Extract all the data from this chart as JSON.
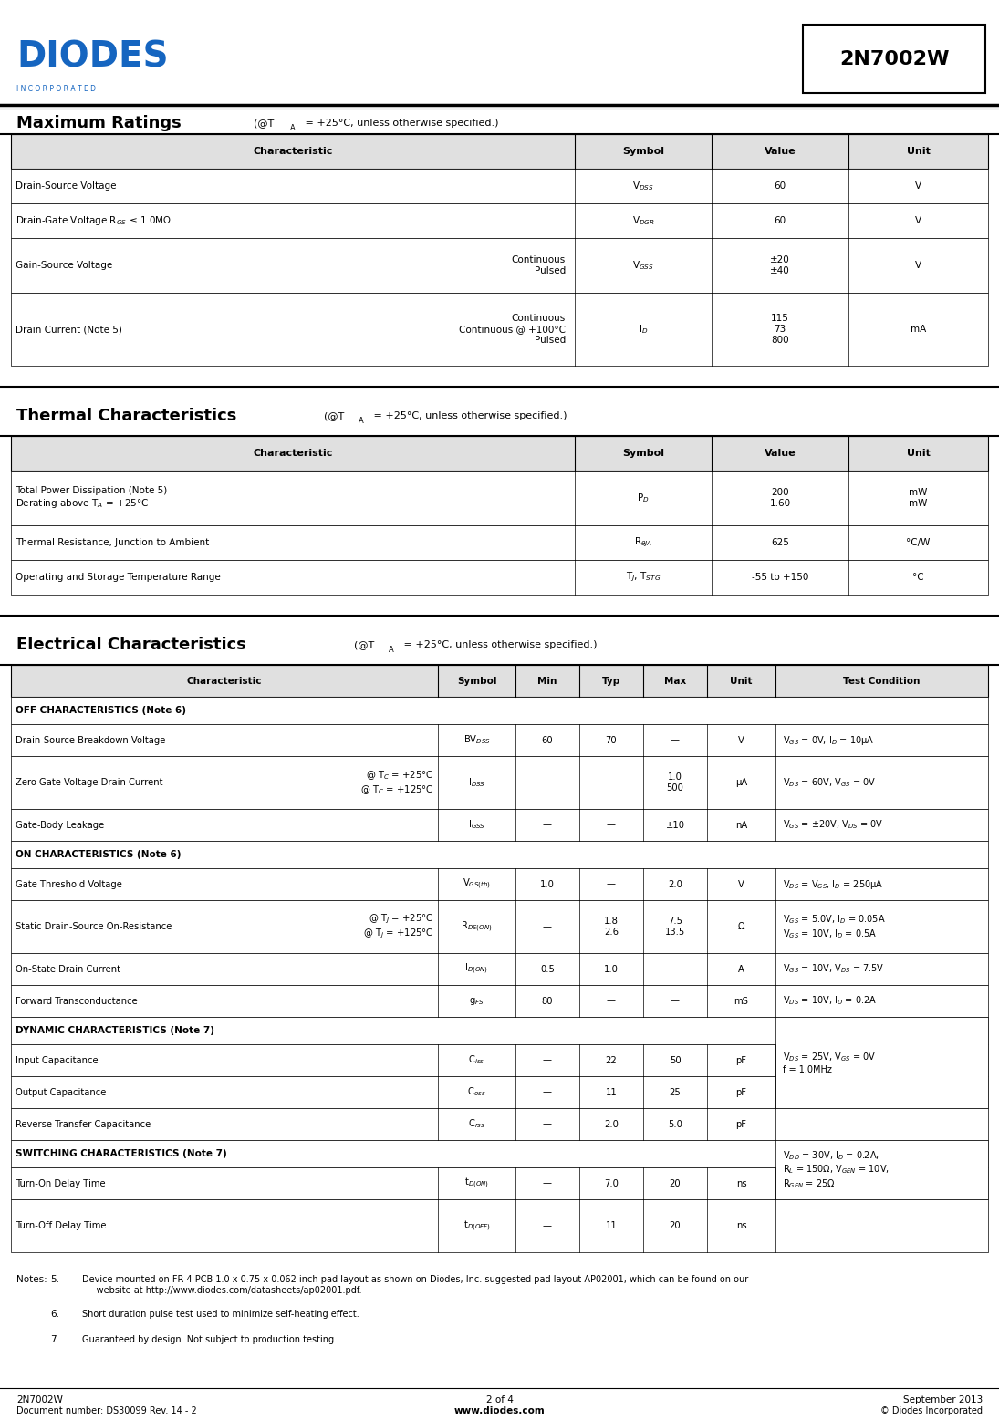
{
  "title_part": "2N7002W",
  "page_info": "2 of 4",
  "date": "September 2013",
  "doc_number": "Document number: DS30099 Rev. 14 - 2",
  "website": "www.diodes.com",
  "copyright": "© Diodes Incorporated",
  "footer_left": "2N7002W",
  "bg_color": "#ffffff",
  "incorporated_text": "I N C O R P O R A T E D"
}
